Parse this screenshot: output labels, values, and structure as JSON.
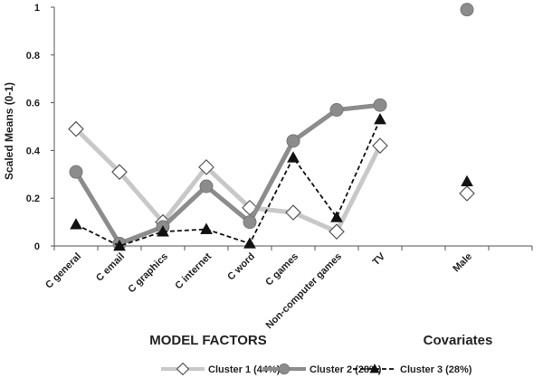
{
  "chart_data": {
    "type": "line",
    "ylabel": "Scaled Means (0-1)",
    "ylim": [
      0,
      1
    ],
    "yticks": [
      "0",
      "0.2",
      "0.4",
      "0.6",
      "0.8",
      "1"
    ],
    "grid": false,
    "legend_position": "bottom",
    "group_labels": [
      "MODEL FACTORS",
      "Covariates"
    ],
    "categories": [
      "C general",
      "C email",
      "C graphics",
      "C internet",
      "C word",
      "C games",
      "Non-computer games",
      "TV",
      "",
      "Male",
      ""
    ],
    "line_segment_end_index": 7,
    "series": [
      {
        "name": "Cluster 1 (44%)",
        "color": "#c8c8c8",
        "marker": "diamond",
        "dash": false,
        "values": [
          0.49,
          0.31,
          0.1,
          0.33,
          0.16,
          0.14,
          0.06,
          0.42,
          null,
          0.22,
          null
        ]
      },
      {
        "name": "Cluster 2 (28%)",
        "color": "#8c8c8c",
        "marker": "circle",
        "dash": false,
        "values": [
          0.31,
          0.01,
          0.08,
          0.25,
          0.1,
          0.44,
          0.57,
          0.59,
          null,
          0.99,
          null
        ]
      },
      {
        "name": "Cluster 3 (28%)",
        "color": "#111111",
        "marker": "triangle",
        "dash": true,
        "values": [
          0.09,
          0.0,
          0.06,
          0.07,
          0.01,
          0.37,
          0.12,
          0.53,
          null,
          0.27,
          null
        ]
      }
    ]
  }
}
